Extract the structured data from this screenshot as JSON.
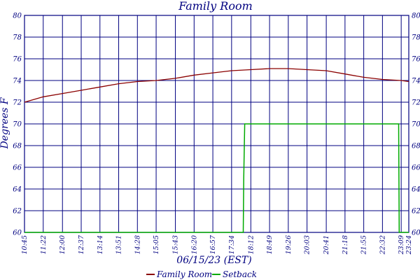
{
  "chart_data": {
    "type": "line",
    "title": "Family Room",
    "xlabel": "06/15/23 (EST)",
    "ylabel": "Degrees F",
    "ylim": [
      60,
      80
    ],
    "yticks": [
      "60",
      "62",
      "64",
      "66",
      "68",
      "70",
      "72",
      "74",
      "76",
      "78",
      "80"
    ],
    "grid": true,
    "legend_position": "bottom-center",
    "xticks": [
      "10:45",
      "11:22",
      "12:00",
      "12:37",
      "13:14",
      "13:51",
      "14:28",
      "15:05",
      "15:43",
      "16:20",
      "16:57",
      "17:34",
      "18:12",
      "18:49",
      "19:26",
      "20:03",
      "20:41",
      "21:18",
      "21:55",
      "22:32",
      "23:09",
      "23:24"
    ],
    "colors": {
      "axis": "#000080",
      "grid": "#000080",
      "family_room": "#8b0000",
      "setback": "#00aa00"
    },
    "series": [
      {
        "name": "Family Room",
        "x": [
          "10:45",
          "11:22",
          "12:00",
          "12:37",
          "13:14",
          "13:51",
          "14:28",
          "15:05",
          "15:43",
          "16:20",
          "16:57",
          "17:34",
          "18:12",
          "18:49",
          "19:26",
          "20:03",
          "20:41",
          "21:18",
          "21:55",
          "22:32",
          "23:09",
          "23:24"
        ],
        "values": [
          72.0,
          72.5,
          72.8,
          73.1,
          73.4,
          73.7,
          73.9,
          74.0,
          74.2,
          74.5,
          74.7,
          74.9,
          75.0,
          75.1,
          75.1,
          75.0,
          74.9,
          74.6,
          74.3,
          74.1,
          74.0,
          73.9
        ]
      },
      {
        "name": "Setback",
        "x": [
          "10:45",
          "17:57",
          "17:58",
          "18:00",
          "23:04",
          "23:05",
          "23:24"
        ],
        "values": [
          60,
          60,
          65,
          70,
          70,
          60,
          60
        ]
      }
    ]
  }
}
